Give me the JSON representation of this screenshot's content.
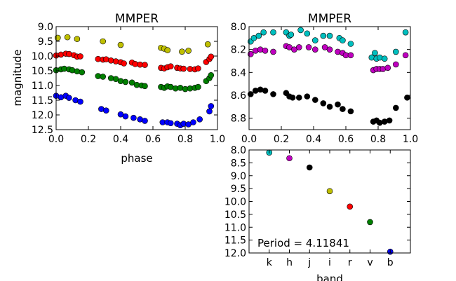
{
  "chart_data": [
    {
      "type": "scatter",
      "title": "MMPER",
      "xlabel": "phase",
      "ylabel": "magnitude",
      "xlim": [
        0.0,
        1.0
      ],
      "ylim": [
        12.5,
        9.0
      ],
      "y_inverted": true,
      "xticks": [
        "0.0",
        "0.2",
        "0.4",
        "0.6",
        "0.8",
        "1.0"
      ],
      "yticks": [
        "9.0",
        "9.5",
        "10.0",
        "10.5",
        "11.0",
        "11.5",
        "12.0",
        "12.5"
      ],
      "series": [
        {
          "color": "#bfbf00",
          "x": [
            0.01,
            0.07,
            0.13,
            0.29,
            0.4,
            0.65,
            0.67,
            0.69,
            0.78,
            0.82,
            0.94
          ],
          "y": [
            9.38,
            9.36,
            9.42,
            9.5,
            9.62,
            9.72,
            9.75,
            9.8,
            9.85,
            9.82,
            9.6
          ]
        },
        {
          "color": "#ff0000",
          "x": [
            0.0,
            0.03,
            0.06,
            0.08,
            0.11,
            0.13,
            0.15,
            0.26,
            0.29,
            0.31,
            0.34,
            0.37,
            0.4,
            0.42,
            0.47,
            0.49,
            0.52,
            0.55,
            0.65,
            0.67,
            0.69,
            0.71,
            0.75,
            0.77,
            0.79,
            0.83,
            0.86,
            0.88,
            0.93,
            0.95,
            0.96
          ],
          "y": [
            9.98,
            9.95,
            9.92,
            9.93,
            9.97,
            10.02,
            10.01,
            10.1,
            10.12,
            10.11,
            10.15,
            10.18,
            10.21,
            10.25,
            10.22,
            10.27,
            10.29,
            10.3,
            10.4,
            10.42,
            10.38,
            10.35,
            10.4,
            10.42,
            10.43,
            10.44,
            10.45,
            10.42,
            10.2,
            10.1,
            10.02
          ]
        },
        {
          "color": "#007f00",
          "x": [
            0.0,
            0.03,
            0.05,
            0.08,
            0.1,
            0.13,
            0.16,
            0.26,
            0.29,
            0.34,
            0.37,
            0.4,
            0.43,
            0.47,
            0.5,
            0.53,
            0.55,
            0.65,
            0.67,
            0.69,
            0.71,
            0.74,
            0.77,
            0.8,
            0.83,
            0.86,
            0.88,
            0.93,
            0.95,
            0.96
          ],
          "y": [
            10.48,
            10.45,
            10.43,
            10.45,
            10.48,
            10.52,
            10.55,
            10.68,
            10.7,
            10.75,
            10.78,
            10.85,
            10.88,
            10.9,
            10.98,
            11.0,
            11.02,
            11.05,
            11.08,
            11.03,
            11.05,
            11.1,
            11.08,
            11.12,
            11.1,
            11.08,
            11.05,
            10.85,
            10.75,
            10.65
          ]
        },
        {
          "color": "#0000ff",
          "x": [
            0.0,
            0.03,
            0.06,
            0.08,
            0.12,
            0.15,
            0.28,
            0.31,
            0.4,
            0.43,
            0.48,
            0.52,
            0.55,
            0.66,
            0.69,
            0.71,
            0.75,
            0.77,
            0.79,
            0.82,
            0.85,
            0.89,
            0.95,
            0.96
          ],
          "y": [
            11.35,
            11.4,
            11.35,
            11.42,
            11.5,
            11.55,
            11.8,
            11.85,
            11.98,
            12.05,
            12.1,
            12.15,
            12.2,
            12.25,
            12.25,
            12.28,
            12.3,
            12.35,
            12.3,
            12.32,
            12.25,
            12.15,
            11.88,
            11.7
          ]
        }
      ]
    },
    {
      "type": "scatter",
      "title": "MMPER",
      "xlim": [
        0.0,
        1.0
      ],
      "ylim": [
        8.9,
        8.0
      ],
      "y_inverted": true,
      "xticks": [
        "0.0",
        "0.2",
        "0.4",
        "0.6",
        "0.8",
        "1.0"
      ],
      "yticks": [
        "8.0",
        "8.2",
        "8.4",
        "8.6",
        "8.8"
      ],
      "series": [
        {
          "color": "#00bfbf",
          "x": [
            0.01,
            0.03,
            0.06,
            0.09,
            0.15,
            0.23,
            0.25,
            0.26,
            0.32,
            0.36,
            0.41,
            0.46,
            0.5,
            0.56,
            0.58,
            0.63,
            0.76,
            0.78,
            0.79,
            0.81,
            0.84,
            0.91,
            0.97
          ],
          "y": [
            8.13,
            8.1,
            8.08,
            8.05,
            8.05,
            8.05,
            8.08,
            8.07,
            8.03,
            8.06,
            8.12,
            8.08,
            8.08,
            8.1,
            8.12,
            8.15,
            8.27,
            8.23,
            8.28,
            8.27,
            8.28,
            8.22,
            8.05
          ]
        },
        {
          "color": "#bf00bf",
          "x": [
            0.01,
            0.04,
            0.07,
            0.1,
            0.15,
            0.23,
            0.25,
            0.28,
            0.31,
            0.37,
            0.41,
            0.47,
            0.5,
            0.55,
            0.58,
            0.6,
            0.63,
            0.77,
            0.79,
            0.81,
            0.83,
            0.86,
            0.91,
            0.97
          ],
          "y": [
            8.24,
            8.21,
            8.2,
            8.21,
            8.22,
            8.17,
            8.18,
            8.2,
            8.18,
            8.18,
            8.2,
            8.18,
            8.2,
            8.22,
            8.23,
            8.25,
            8.25,
            8.38,
            8.37,
            8.37,
            8.37,
            8.36,
            8.33,
            8.25
          ]
        },
        {
          "color": "#000000",
          "x": [
            0.01,
            0.04,
            0.07,
            0.1,
            0.15,
            0.23,
            0.25,
            0.27,
            0.31,
            0.36,
            0.41,
            0.46,
            0.5,
            0.55,
            0.58,
            0.63,
            0.77,
            0.79,
            0.81,
            0.84,
            0.87,
            0.91,
            0.98
          ],
          "y": [
            8.59,
            8.56,
            8.55,
            8.56,
            8.59,
            8.58,
            8.61,
            8.62,
            8.62,
            8.61,
            8.64,
            8.67,
            8.7,
            8.68,
            8.72,
            8.74,
            8.83,
            8.82,
            8.84,
            8.83,
            8.82,
            8.71,
            8.62
          ]
        }
      ]
    },
    {
      "type": "scatter",
      "xlabel": "band",
      "categories": [
        "k",
        "h",
        "j",
        "i",
        "r",
        "v",
        "b"
      ],
      "ylim": [
        12.0,
        8.0
      ],
      "y_inverted": true,
      "yticks": [
        "8.0",
        "8.5",
        "9.0",
        "9.5",
        "10.0",
        "10.5",
        "11.0",
        "11.5",
        "12.0"
      ],
      "annotation": "Period = 4.11841",
      "series": [
        {
          "colors": [
            "#00bfbf",
            "#bf00bf",
            "#000000",
            "#bfbf00",
            "#ff0000",
            "#007f00",
            "#0000ff"
          ],
          "values": [
            8.1,
            8.32,
            8.68,
            9.6,
            10.2,
            10.8,
            11.95
          ]
        }
      ]
    }
  ]
}
